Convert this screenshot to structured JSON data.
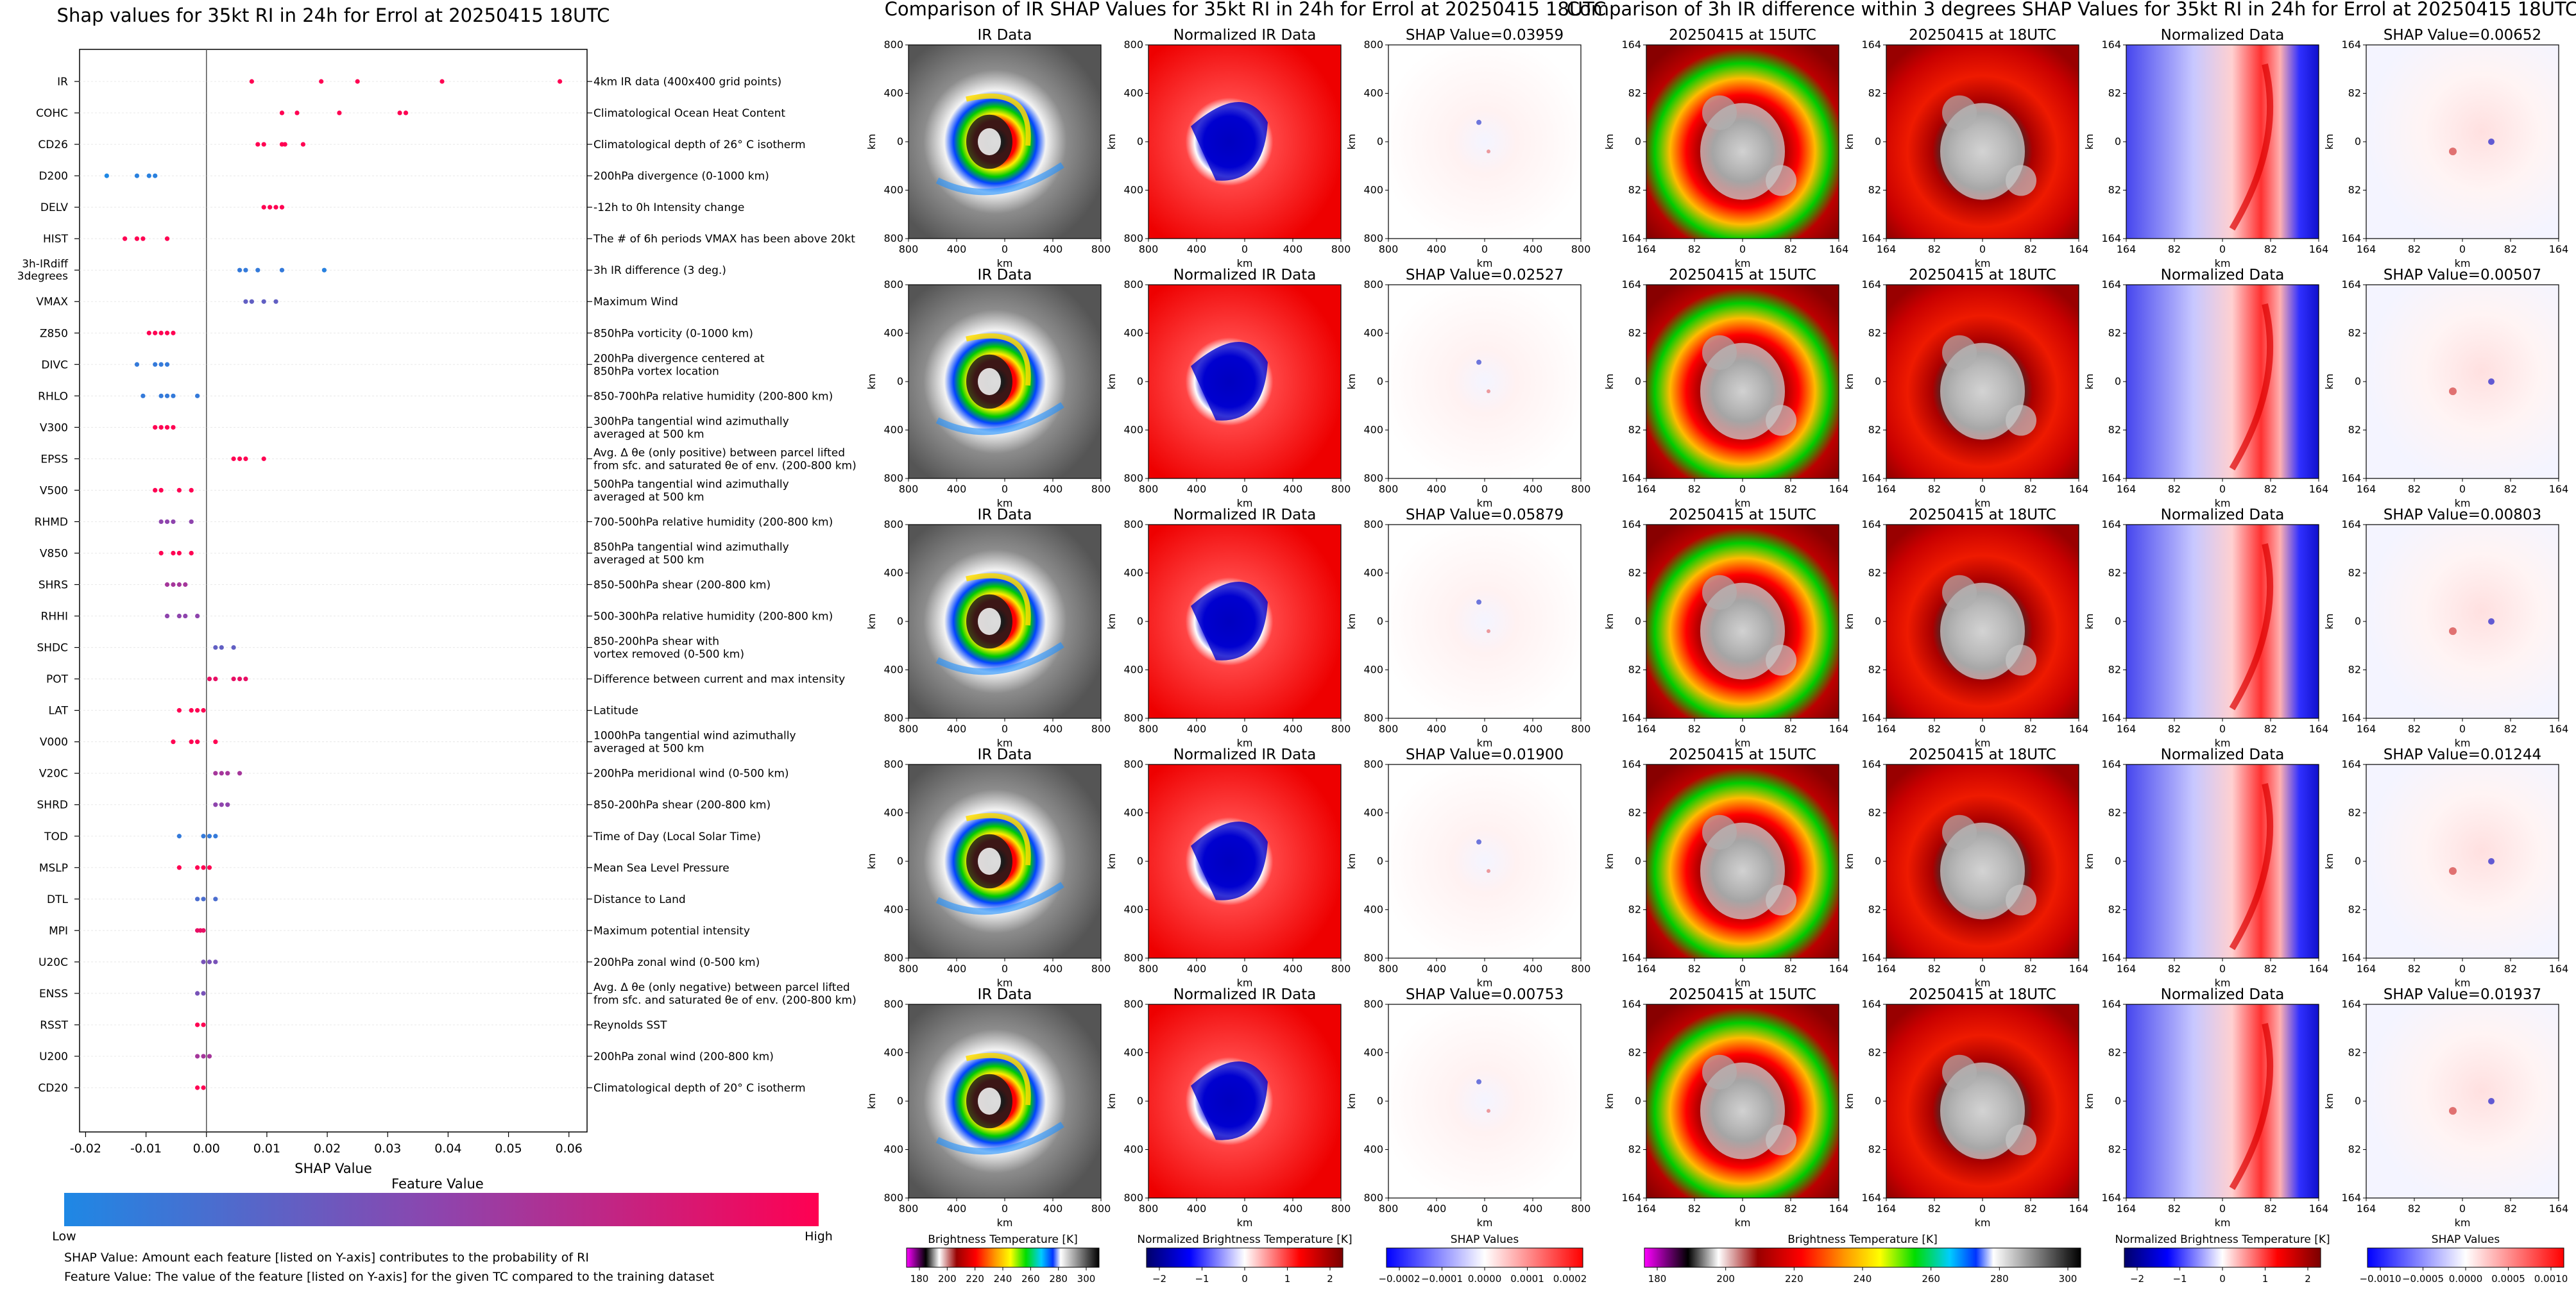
{
  "chart_data": [
    {
      "type": "scatter",
      "subtype": "shap-beeswarm",
      "title": "Shap values for 35kt RI in 24h for Errol at 20250415 18UTC",
      "xlabel": "SHAP Value",
      "xlim": [
        -0.021,
        0.063
      ],
      "xticks": [
        "-0.02",
        "-0.01",
        "0.00",
        "0.01",
        "0.02",
        "0.03",
        "0.04",
        "0.05",
        "0.06"
      ],
      "xtick_values": [
        -0.02,
        -0.01,
        0,
        0.01,
        0.02,
        0.03,
        0.04,
        0.05,
        0.06
      ],
      "features": [
        {
          "name": "IR",
          "desc": "4km IR data (400x400 grid points)",
          "points": [
            [
              0.0075,
              1
            ],
            [
              0.019,
              1
            ],
            [
              0.025,
              1
            ],
            [
              0.039,
              1
            ],
            [
              0.0585,
              1
            ]
          ]
        },
        {
          "name": "COHC",
          "desc": "Climatological Ocean Heat Content",
          "points": [
            [
              0.0125,
              1
            ],
            [
              0.015,
              1
            ],
            [
              0.022,
              1
            ],
            [
              0.032,
              1
            ],
            [
              0.033,
              1
            ]
          ]
        },
        {
          "name": "CD26",
          "desc": "Climatological depth of 26° C isotherm",
          "points": [
            [
              0.0085,
              1
            ],
            [
              0.0095,
              1
            ],
            [
              0.0125,
              1
            ],
            [
              0.013,
              1
            ],
            [
              0.016,
              1
            ]
          ]
        },
        {
          "name": "D200",
          "desc": "200hPa divergence (0-1000 km)",
          "points": [
            [
              -0.0165,
              0
            ],
            [
              -0.0115,
              0.05
            ],
            [
              -0.0095,
              0.05
            ],
            [
              -0.0085,
              0.05
            ]
          ]
        },
        {
          "name": "DELV",
          "desc": "-12h to 0h Intensity change",
          "points": [
            [
              0.0095,
              1
            ],
            [
              0.0105,
              1
            ],
            [
              0.0115,
              1
            ],
            [
              0.0125,
              1
            ]
          ]
        },
        {
          "name": "HIST",
          "desc": "The # of 6h periods VMAX has been above 20kt",
          "points": [
            [
              -0.0135,
              1
            ],
            [
              -0.0115,
              1
            ],
            [
              -0.0105,
              1
            ],
            [
              -0.0065,
              1
            ]
          ]
        },
        {
          "name": "3h-IRdiff 3degrees",
          "desc": "3h IR difference (3 deg.)",
          "points": [
            [
              0.0055,
              0.1
            ],
            [
              0.0065,
              0.1
            ],
            [
              0.0085,
              0.1
            ],
            [
              0.0125,
              0.1
            ],
            [
              0.0195,
              0.05
            ]
          ]
        },
        {
          "name": "VMAX",
          "desc": "Maximum Wind",
          "points": [
            [
              0.0065,
              0.3
            ],
            [
              0.0075,
              0.3
            ],
            [
              0.0095,
              0.3
            ],
            [
              0.0115,
              0.3
            ]
          ]
        },
        {
          "name": "Z850",
          "desc": "850hPa vorticity (0-1000 km)",
          "points": [
            [
              -0.0095,
              1
            ],
            [
              -0.0085,
              1
            ],
            [
              -0.0075,
              1
            ],
            [
              -0.0065,
              1
            ],
            [
              -0.0055,
              1
            ]
          ]
        },
        {
          "name": "DIVC",
          "desc": "200hPa divergence centered at\n850hPa vortex location",
          "points": [
            [
              -0.0115,
              0.1
            ],
            [
              -0.0085,
              0.1
            ],
            [
              -0.0075,
              0.1
            ],
            [
              -0.0065,
              0.1
            ]
          ]
        },
        {
          "name": "RHLO",
          "desc": "850-700hPa relative humidity (200-800 km)",
          "points": [
            [
              -0.0105,
              0.1
            ],
            [
              -0.0075,
              0.1
            ],
            [
              -0.0065,
              0.1
            ],
            [
              -0.0055,
              0.1
            ],
            [
              -0.0015,
              0.1
            ]
          ]
        },
        {
          "name": "V300",
          "desc": "300hPa tangential wind azimuthally\naveraged at 500 km",
          "points": [
            [
              -0.0085,
              1
            ],
            [
              -0.0075,
              1
            ],
            [
              -0.0065,
              1
            ],
            [
              -0.0055,
              1
            ]
          ]
        },
        {
          "name": "EPSS",
          "desc": "Avg. Δ θe (only positive) between parcel lifted\nfrom sfc. and saturated θe of env. (200-800 km)",
          "points": [
            [
              0.0045,
              1
            ],
            [
              0.0055,
              1
            ],
            [
              0.0065,
              1
            ],
            [
              0.0095,
              1
            ]
          ]
        },
        {
          "name": "V500",
          "desc": "500hPa tangential wind azimuthally\naveraged at 500 km",
          "points": [
            [
              -0.0085,
              1
            ],
            [
              -0.0075,
              1
            ],
            [
              -0.0045,
              1
            ],
            [
              -0.0025,
              1
            ]
          ]
        },
        {
          "name": "RHMD",
          "desc": "700-500hPa relative humidity (200-800 km)",
          "points": [
            [
              -0.0075,
              0.5
            ],
            [
              -0.0065,
              0.5
            ],
            [
              -0.0055,
              0.5
            ],
            [
              -0.0025,
              0.5
            ]
          ]
        },
        {
          "name": "V850",
          "desc": "850hPa tangential wind azimuthally\naveraged at 500 km",
          "points": [
            [
              -0.0075,
              1
            ],
            [
              -0.0055,
              1
            ],
            [
              -0.0045,
              1
            ],
            [
              -0.0025,
              1
            ]
          ]
        },
        {
          "name": "SHRS",
          "desc": "850-500hPa shear (200-800 km)",
          "points": [
            [
              -0.0065,
              0.6
            ],
            [
              -0.0055,
              0.6
            ],
            [
              -0.0045,
              0.6
            ],
            [
              -0.0035,
              0.6
            ]
          ]
        },
        {
          "name": "RHHI",
          "desc": "500-300hPa relative humidity (200-800 km)",
          "points": [
            [
              -0.0065,
              0.5
            ],
            [
              -0.0045,
              0.5
            ],
            [
              -0.0035,
              0.5
            ],
            [
              -0.0015,
              0.5
            ]
          ]
        },
        {
          "name": "SHDC",
          "desc": "850-200hPa shear with\nvortex removed (0-500 km)",
          "points": [
            [
              0.0015,
              0.3
            ],
            [
              0.0025,
              0.3
            ],
            [
              0.0045,
              0.3
            ]
          ]
        },
        {
          "name": "POT",
          "desc": "Difference between current and max intensity",
          "points": [
            [
              0.0005,
              0.9
            ],
            [
              0.0015,
              0.9
            ],
            [
              0.0045,
              0.9
            ],
            [
              0.0055,
              0.9
            ],
            [
              0.0065,
              0.9
            ]
          ]
        },
        {
          "name": "LAT",
          "desc": "Latitude",
          "points": [
            [
              -0.0045,
              1
            ],
            [
              -0.0025,
              1
            ],
            [
              -0.0015,
              1
            ],
            [
              -0.0005,
              1
            ]
          ]
        },
        {
          "name": "V000",
          "desc": "1000hPa tangential wind azimuthally\naveraged at 500 km",
          "points": [
            [
              -0.0055,
              1
            ],
            [
              -0.0025,
              1
            ],
            [
              -0.0015,
              1
            ],
            [
              0.0015,
              1
            ]
          ]
        },
        {
          "name": "V20C",
          "desc": "200hPa meridional wind (0-500 km)",
          "points": [
            [
              0.0015,
              0.6
            ],
            [
              0.0025,
              0.6
            ],
            [
              0.0035,
              0.6
            ],
            [
              0.0055,
              0.6
            ]
          ]
        },
        {
          "name": "SHRD",
          "desc": "850-200hPa shear (200-800 km)",
          "points": [
            [
              0.0015,
              0.5
            ],
            [
              0.0025,
              0.5
            ],
            [
              0.0035,
              0.5
            ]
          ]
        },
        {
          "name": "TOD",
          "desc": "Time of Day (Local Solar Time)",
          "points": [
            [
              -0.0045,
              0.1
            ],
            [
              -0.0005,
              0.1
            ],
            [
              0.0005,
              0.1
            ],
            [
              0.0015,
              0.1
            ]
          ]
        },
        {
          "name": "MSLP",
          "desc": "Mean Sea Level Pressure",
          "points": [
            [
              -0.0045,
              1
            ],
            [
              -0.0015,
              1
            ],
            [
              -0.0005,
              1
            ],
            [
              0.0005,
              1
            ]
          ]
        },
        {
          "name": "DTL",
          "desc": "Distance to Land",
          "points": [
            [
              -0.0015,
              0.2
            ],
            [
              -0.0005,
              0.2
            ],
            [
              0.0015,
              0.2
            ]
          ]
        },
        {
          "name": "MPI",
          "desc": "Maximum potential intensity",
          "points": [
            [
              -0.0015,
              0.9
            ],
            [
              -0.001,
              0.9
            ],
            [
              -0.0005,
              0.9
            ]
          ]
        },
        {
          "name": "U20C",
          "desc": "200hPa zonal wind (0-500 km)",
          "points": [
            [
              -0.0005,
              0.4
            ],
            [
              0.0005,
              0.4
            ],
            [
              0.0015,
              0.4
            ]
          ]
        },
        {
          "name": "ENSS",
          "desc": "Avg. Δ θe (only negative) between parcel lifted\nfrom sfc. and saturated θe of env. (200-800 km)",
          "points": [
            [
              -0.0015,
              0.4
            ],
            [
              -0.0005,
              0.4
            ]
          ]
        },
        {
          "name": "RSST",
          "desc": "Reynolds SST",
          "points": [
            [
              -0.0015,
              1
            ],
            [
              -0.0005,
              1
            ]
          ]
        },
        {
          "name": "U200",
          "desc": "200hPa zonal wind (200-800 km)",
          "points": [
            [
              -0.0015,
              0.6
            ],
            [
              -0.0005,
              0.6
            ],
            [
              0.0005,
              0.6
            ]
          ]
        },
        {
          "name": "CD20",
          "desc": "Climatological depth of 20° C isotherm",
          "points": [
            [
              -0.0015,
              1
            ],
            [
              -0.0005,
              1
            ]
          ]
        }
      ],
      "colorbar": {
        "title": "Feature Value",
        "low": "Low",
        "high": "High",
        "colors": [
          "#1e88e5",
          "#8e44ad",
          "#ff0052"
        ]
      },
      "notes": [
        "SHAP Value: Amount each feature [listed on Y-axis] contributes to the probability of RI",
        "Feature Value: The value of the feature [listed on Y-axis] for the given TC compared to the training dataset"
      ]
    },
    {
      "type": "heatmap",
      "title": "Comparison of IR SHAP Values for 35kt RI in 24h for Errol at 20250415 18UTC",
      "panel_titles": [
        "IR Data",
        "Normalized IR Data"
      ],
      "shap_titles": [
        "SHAP Value=0.03959",
        "SHAP Value=0.02527",
        "SHAP Value=0.05879",
        "SHAP Value=0.01900",
        "SHAP Value=0.00753"
      ],
      "axis_label": "km",
      "ticks": [
        "800",
        "400",
        "0",
        "400",
        "800"
      ],
      "colorbars": [
        {
          "title": "Brightness Temperature [K]",
          "ticks": [
            "180",
            "200",
            "220",
            "240",
            "260",
            "280",
            "300"
          ]
        },
        {
          "title": "Normalized Brightness Temperature [K]",
          "ticks": [
            "−2",
            "−1",
            "0",
            "1",
            "2"
          ]
        },
        {
          "title": "SHAP Values",
          "ticks": [
            "−0.0002",
            "−0.0001",
            "0.0000",
            "0.0001",
            "0.0002"
          ]
        }
      ]
    },
    {
      "type": "heatmap",
      "title": "Comparison of 3h IR difference within 3 degrees SHAP Values for 35kt RI in 24h for Errol at 20250415 18UTC",
      "panel_titles": [
        "20250415 at 15UTC",
        "20250415 at 18UTC",
        "Normalized Data"
      ],
      "shap_titles": [
        "SHAP Value=0.00652",
        "SHAP Value=0.00507",
        "SHAP Value=0.00803",
        "SHAP Value=0.01244",
        "SHAP Value=0.01937"
      ],
      "axis_label": "km",
      "ticks": [
        "164",
        "82",
        "0",
        "82",
        "164"
      ],
      "colorbars": [
        {
          "title": "Brightness Temperature [K]",
          "ticks": [
            "180",
            "200",
            "220",
            "240",
            "260",
            "280",
            "300"
          ]
        },
        {
          "title": "Normalized Brightness Temperature [K]",
          "ticks": [
            "−2",
            "−1",
            "0",
            "1",
            "2"
          ]
        },
        {
          "title": "SHAP Values",
          "ticks": [
            "−0.0010",
            "−0.0005",
            "0.0000",
            "0.0005",
            "0.0010"
          ]
        }
      ]
    }
  ]
}
